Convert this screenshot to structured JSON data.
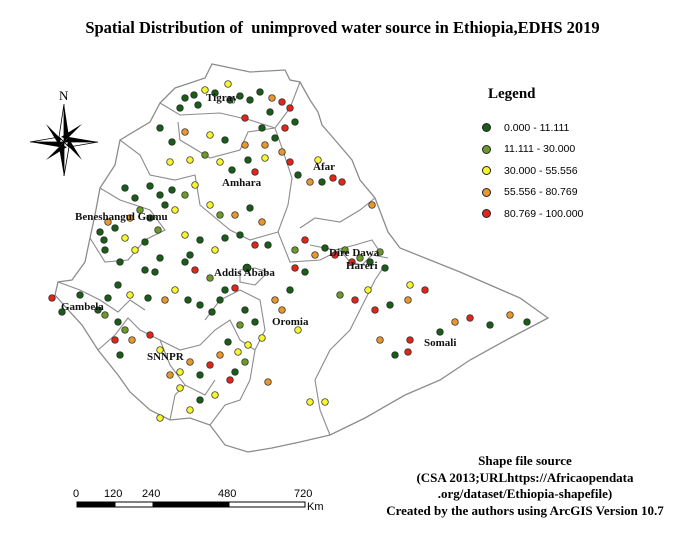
{
  "title": "Spatial Distribution of  unimproved water source in Ethiopia,EDHS 2019",
  "north_arrow": {
    "label": "N"
  },
  "legend": {
    "title": "Legend",
    "items": [
      {
        "label": "0.000 - 11.111",
        "color": "#1a5c1a"
      },
      {
        "label": "11.111 - 30.000",
        "color": "#6b9a2a"
      },
      {
        "label": "30.000 - 55.556",
        "color": "#f5f532"
      },
      {
        "label": "55.556 - 80.769",
        "color": "#e8962e"
      },
      {
        "label": "80.769 - 100.000",
        "color": "#e0261a"
      }
    ]
  },
  "regions": [
    "Tigray",
    "Afar",
    "Amhara",
    "Beneshangul Gumu",
    "Dire Dawa",
    "Hareri",
    "Addis Ababa",
    "Gambela",
    "Oromia",
    "Somali",
    "SNNPR"
  ],
  "scale_bar": {
    "ticks": [
      "0",
      "120",
      "240",
      "480",
      "720"
    ],
    "unit": "Km"
  },
  "source": {
    "lines": [
      "Shape file source",
      "(CSA 2013;URLhttps://Africaopendata",
      ".org/dataset/Ethiopia-shapefile)",
      "Created by the authors using ArcGIS Version 10.7"
    ]
  }
}
